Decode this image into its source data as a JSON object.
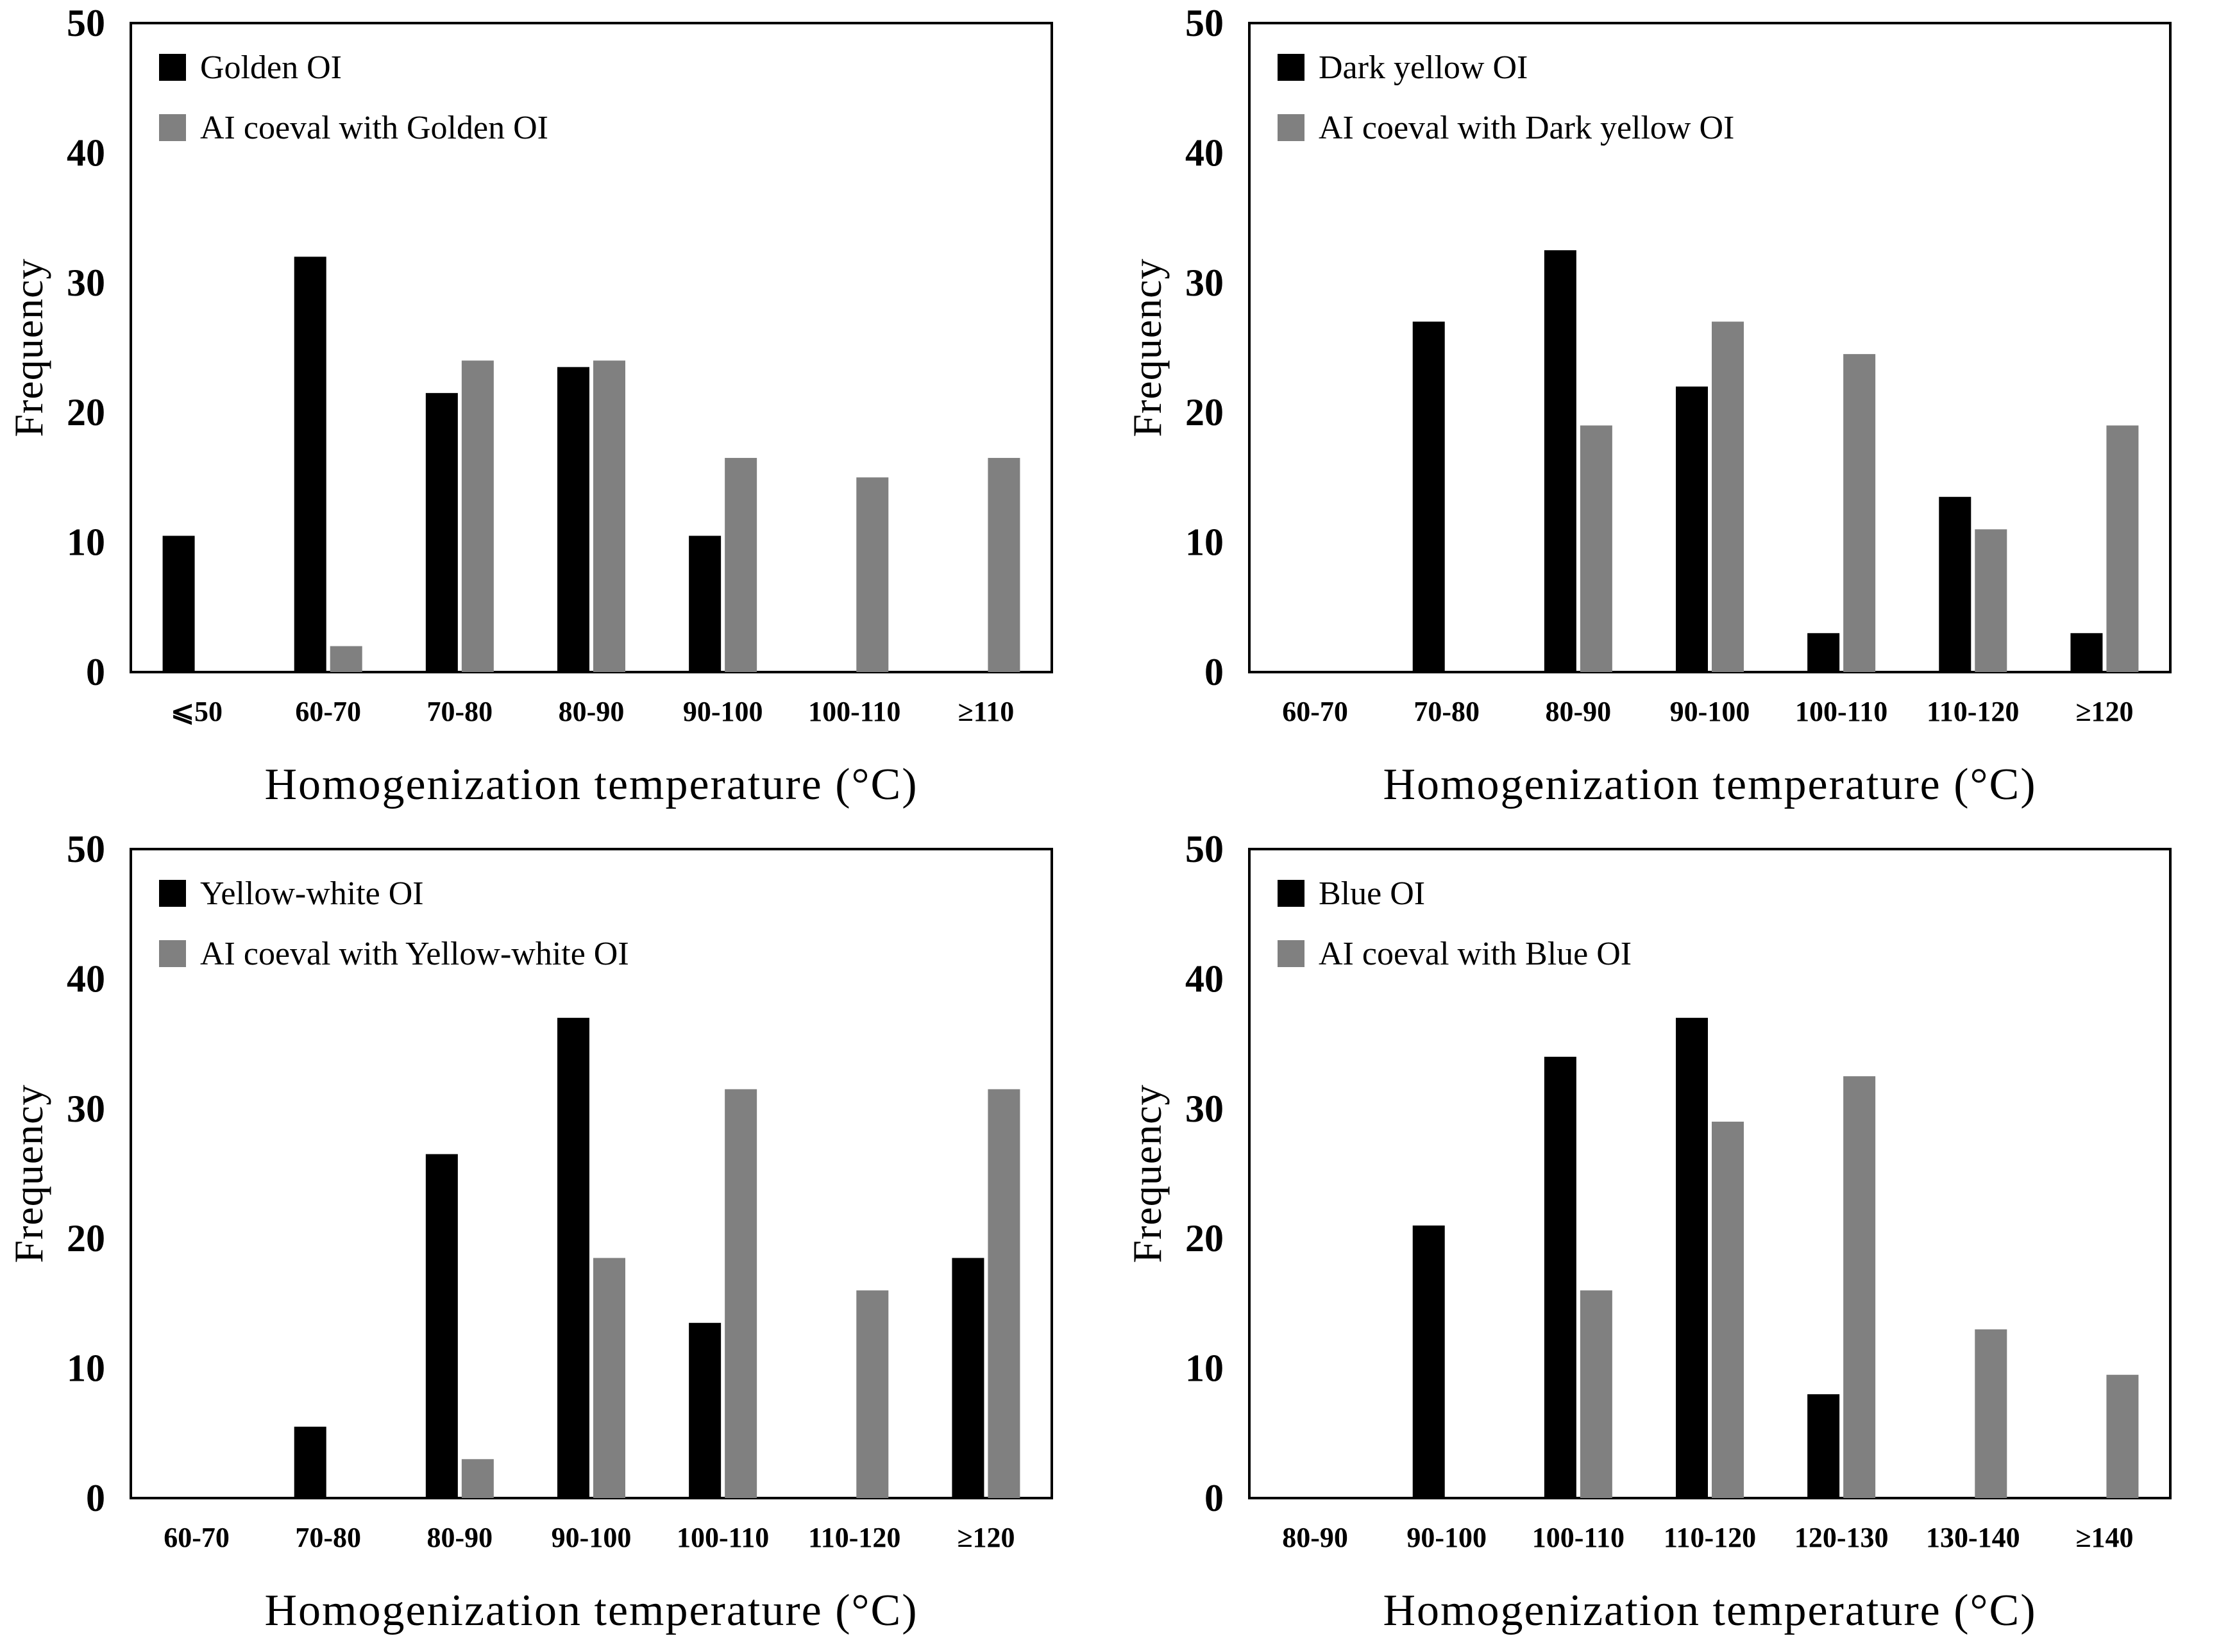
{
  "colors": {
    "oi": "#000000",
    "ai": "#808080",
    "axis": "#000000"
  },
  "chart_data": [
    {
      "type": "bar",
      "xlabel": "Homogenization  temperature (°C)",
      "ylabel": "Frequency",
      "ylim": [
        0,
        50
      ],
      "yticks": [
        "0",
        "10",
        "20",
        "30",
        "40",
        "50"
      ],
      "categories": [
        "⩽50",
        "60-70",
        "70-80",
        "80-90",
        "90-100",
        "100-110",
        "≥110"
      ],
      "series": [
        {
          "name": "Golden  OI",
          "values": [
            10.5,
            32,
            21.5,
            23.5,
            10.5,
            0,
            0
          ]
        },
        {
          "name": "AI  coeval with Golden  OI",
          "values": [
            0,
            2,
            24,
            24,
            16.5,
            15,
            16.5
          ]
        }
      ]
    },
    {
      "type": "bar",
      "xlabel": "Homogenization  temperature (°C)",
      "ylabel": "Frequency",
      "ylim": [
        0,
        50
      ],
      "yticks": [
        "0",
        "10",
        "20",
        "30",
        "40",
        "50"
      ],
      "categories": [
        "60-70",
        "70-80",
        "80-90",
        "90-100",
        "100-110",
        "110-120",
        "≥120"
      ],
      "series": [
        {
          "name": "Dark yellow  OI",
          "values": [
            0,
            27,
            32.5,
            22,
            3,
            13.5,
            3
          ]
        },
        {
          "name": "AI  coeval with Dark yellow  OI",
          "values": [
            0,
            0,
            19,
            27,
            24.5,
            11,
            19
          ]
        }
      ]
    },
    {
      "type": "bar",
      "xlabel": "Homogenization  temperature (°C)",
      "ylabel": "Frequency",
      "ylim": [
        0,
        50
      ],
      "yticks": [
        "0",
        "10",
        "20",
        "30",
        "40",
        "50"
      ],
      "categories": [
        "60-70",
        "70-80",
        "80-90",
        "90-100",
        "100-110",
        "110-120",
        "≥120"
      ],
      "series": [
        {
          "name": "Yellow-white  OI",
          "values": [
            0,
            5.5,
            26.5,
            37,
            13.5,
            0,
            18.5
          ]
        },
        {
          "name": "AI  coeval with Yellow-white  OI",
          "values": [
            0,
            0,
            3,
            18.5,
            31.5,
            16,
            31.5
          ]
        }
      ]
    },
    {
      "type": "bar",
      "xlabel": "Homogenization  temperature (°C)",
      "ylabel": "Frequency",
      "ylim": [
        0,
        50
      ],
      "yticks": [
        "0",
        "10",
        "20",
        "30",
        "40",
        "50"
      ],
      "categories": [
        "80-90",
        "90-100",
        "100-110",
        "110-120",
        "120-130",
        "130-140",
        "≥140"
      ],
      "series": [
        {
          "name": "Blue  OI",
          "values": [
            0,
            21,
            34,
            37,
            8,
            0,
            0
          ]
        },
        {
          "name": "AI  coeval with Blue  OI",
          "values": [
            0,
            0,
            16,
            29,
            32.5,
            13,
            9.5
          ]
        }
      ]
    }
  ]
}
